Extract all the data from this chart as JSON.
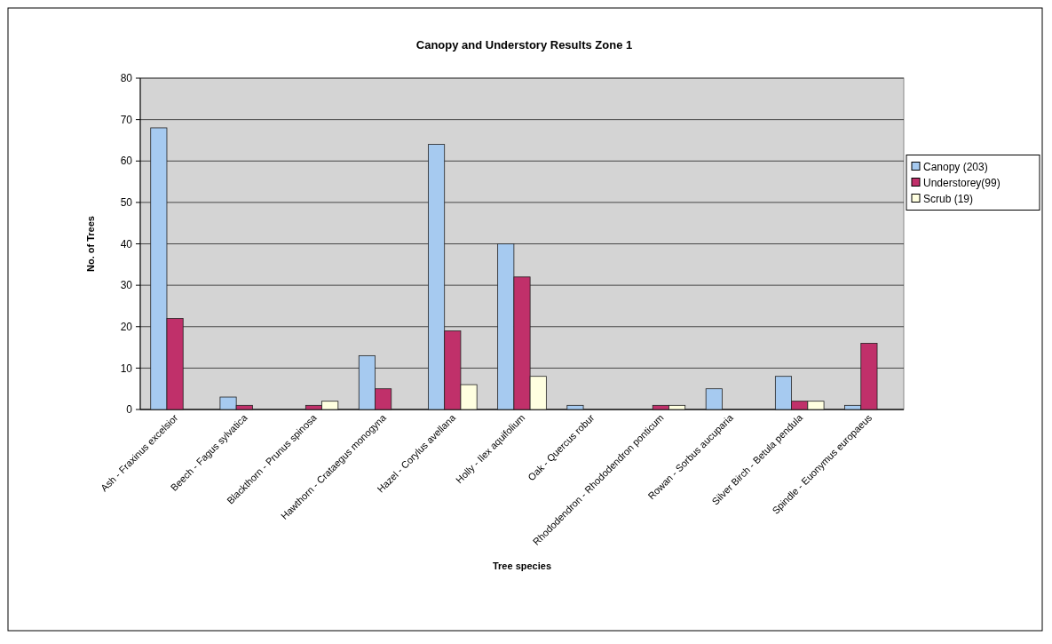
{
  "chart_data": {
    "type": "bar",
    "title": "Canopy and Understory Results Zone 1",
    "xlabel": "Tree species",
    "ylabel": "No. of Trees",
    "categories": [
      "Ash - Fraxinus excelsior",
      "Beech - Fagus sylvatica",
      "Blackthorn - Prunus spinosa",
      "Hawthorn - Crataegus monogyna",
      "Hazel - Corylus avellana",
      "Holly - Ilex aquifolium",
      "Oak - Quercus robur",
      "Rhododendron - Rhododendron ponticum",
      "Rowan - Sorbus aucuparia",
      "Silver Birch - Betula pendula",
      "Spindle - Euonymus europaeus"
    ],
    "series": [
      {
        "name": "Canopy (203)",
        "color": "#a6caf0",
        "values": [
          68,
          3,
          0,
          13,
          64,
          40,
          1,
          0,
          5,
          8,
          1
        ]
      },
      {
        "name": "Understorey(99)",
        "color": "#c0306a",
        "values": [
          22,
          1,
          1,
          5,
          19,
          32,
          0,
          1,
          0,
          2,
          16
        ]
      },
      {
        "name": "Scrub (19)",
        "color": "#ffffe0",
        "values": [
          0,
          0,
          2,
          0,
          6,
          8,
          0,
          1,
          0,
          2,
          0
        ]
      }
    ],
    "ylim": [
      0,
      80
    ],
    "yticks": [
      0,
      10,
      20,
      30,
      40,
      50,
      60,
      70,
      80
    ],
    "grid": "y",
    "legend": "right"
  }
}
